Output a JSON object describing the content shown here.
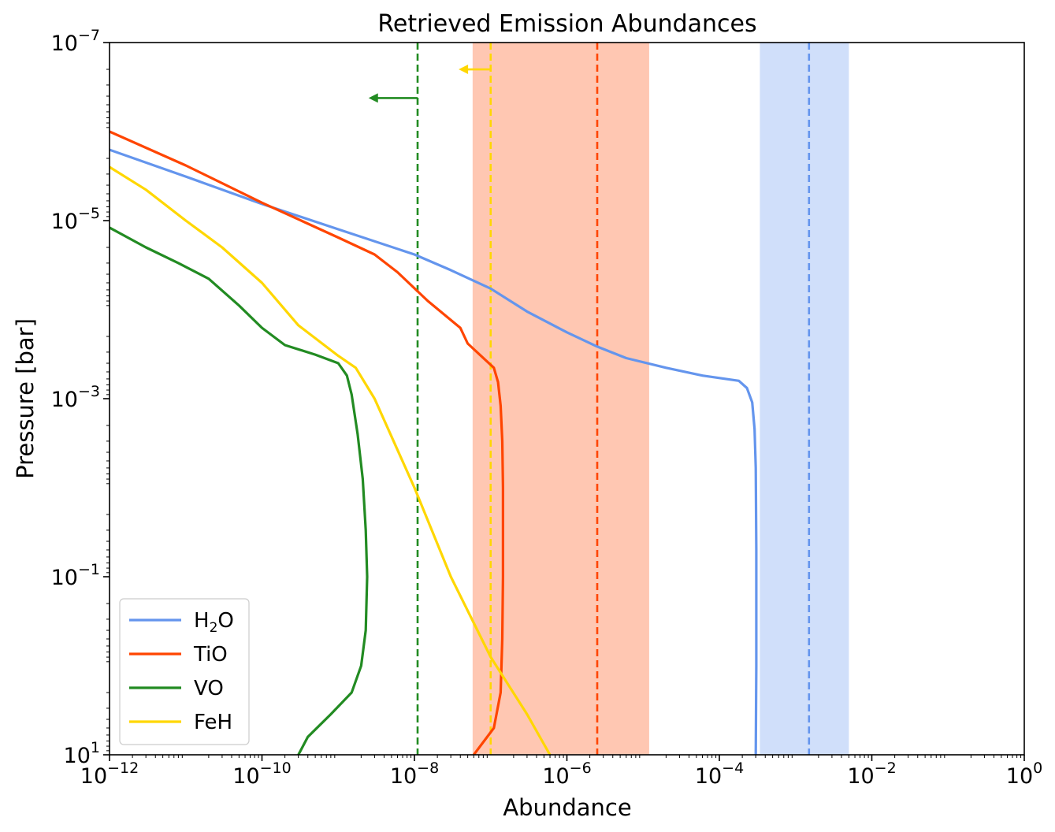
{
  "chart_data": {
    "type": "line",
    "title": "Retrieved Emission Abundances",
    "xlabel": "Abundance",
    "ylabel": "Pressure [bar]",
    "x_scale": "log",
    "y_scale": "log",
    "y_inverted": true,
    "xlim": [
      1e-12,
      1
    ],
    "ylim": [
      10,
      1e-07
    ],
    "x_ticks": [
      {
        "base": "10",
        "exp": "−12",
        "value": 1e-12
      },
      {
        "base": "10",
        "exp": "−10",
        "value": 1e-10
      },
      {
        "base": "10",
        "exp": "−8",
        "value": 1e-08
      },
      {
        "base": "10",
        "exp": "−6",
        "value": 1e-06
      },
      {
        "base": "10",
        "exp": "−4",
        "value": 0.0001
      },
      {
        "base": "10",
        "exp": "−2",
        "value": 0.01
      },
      {
        "base": "10",
        "exp": "0",
        "value": 1
      }
    ],
    "y_ticks": [
      {
        "base": "10",
        "exp": "−7",
        "value": 1e-07
      },
      {
        "base": "10",
        "exp": "−5",
        "value": 1e-05
      },
      {
        "base": "10",
        "exp": "−3",
        "value": 0.001
      },
      {
        "base": "10",
        "exp": "−1",
        "value": 0.1
      },
      {
        "base": "10",
        "exp": "1",
        "value": 10
      }
    ],
    "grid": false,
    "legend_position": "lower-left",
    "series": [
      {
        "name": "H2O",
        "legend_main": "H",
        "legend_sub": "2",
        "legend_tail": "O",
        "color": "#6495ED",
        "points": [
          [
            1e-12,
            1.6e-06
          ],
          [
            1e-11,
            3.2e-06
          ],
          [
            1e-10,
            6.5e-06
          ],
          [
            1e-09,
            1.25e-05
          ],
          [
            1e-08,
            2.4e-05
          ],
          [
            3e-08,
            3.6e-05
          ],
          [
            1e-07,
            5.8e-05
          ],
          [
            3e-07,
            0.000105
          ],
          [
            1e-06,
            0.00018
          ],
          [
            2.5e-06,
            0.00026
          ],
          [
            6e-06,
            0.00035
          ],
          [
            2e-05,
            0.00045
          ],
          [
            6e-05,
            0.00055
          ],
          [
            0.00018,
            0.00063
          ],
          [
            0.00023,
            0.00076
          ],
          [
            0.00027,
            0.0011
          ],
          [
            0.00029,
            0.0022
          ],
          [
            0.0003,
            0.006
          ],
          [
            0.000305,
            0.05
          ],
          [
            0.000305,
            1
          ],
          [
            0.0003,
            10
          ]
        ]
      },
      {
        "name": "TiO",
        "legend_main": "TiO",
        "legend_sub": "",
        "legend_tail": "",
        "color": "#FF4500",
        "points": [
          [
            1e-12,
            1e-06
          ],
          [
            1e-11,
            2.4e-06
          ],
          [
            1e-10,
            6.3e-06
          ],
          [
            1e-09,
            1.55e-05
          ],
          [
            3e-09,
            2.4e-05
          ],
          [
            6e-09,
            3.8e-05
          ],
          [
            1.5e-08,
            8e-05
          ],
          [
            4e-08,
            0.00016
          ],
          [
            5e-08,
            0.00024
          ],
          [
            1.1e-07,
            0.00045
          ],
          [
            1.25e-07,
            0.00065
          ],
          [
            1.35e-07,
            0.0012
          ],
          [
            1.42e-07,
            0.003
          ],
          [
            1.45e-07,
            0.01
          ],
          [
            1.45e-07,
            0.1
          ],
          [
            1.42e-07,
            0.5
          ],
          [
            1.35e-07,
            2
          ],
          [
            1.1e-07,
            5
          ],
          [
            6e-08,
            10
          ]
        ]
      },
      {
        "name": "VO",
        "legend_main": "VO",
        "legend_sub": "",
        "legend_tail": "",
        "color": "#228B22",
        "points": [
          [
            1e-12,
            1.2e-05
          ],
          [
            3e-12,
            2e-05
          ],
          [
            8e-12,
            3e-05
          ],
          [
            2e-11,
            4.5e-05
          ],
          [
            5e-11,
            9e-05
          ],
          [
            1e-10,
            0.00016
          ],
          [
            2e-10,
            0.00025
          ],
          [
            5e-10,
            0.00032
          ],
          [
            1e-09,
            0.0004
          ],
          [
            1.3e-09,
            0.00055
          ],
          [
            1.5e-09,
            0.0009
          ],
          [
            1.8e-09,
            0.0025
          ],
          [
            2.1e-09,
            0.008
          ],
          [
            2.3e-09,
            0.03
          ],
          [
            2.4e-09,
            0.1
          ],
          [
            2.3e-09,
            0.4
          ],
          [
            2e-09,
            1
          ],
          [
            1.5e-09,
            2
          ],
          [
            8e-10,
            3.5
          ],
          [
            4e-10,
            6.3
          ],
          [
            3e-10,
            10
          ]
        ]
      },
      {
        "name": "FeH",
        "legend_main": "FeH",
        "legend_sub": "",
        "legend_tail": "",
        "color": "#FFD700",
        "points": [
          [
            1e-12,
            2.5e-06
          ],
          [
            3e-12,
            4.5e-06
          ],
          [
            1e-11,
            1e-05
          ],
          [
            3e-11,
            2e-05
          ],
          [
            1e-10,
            5e-05
          ],
          [
            3e-10,
            0.00015
          ],
          [
            1e-09,
            0.00033
          ],
          [
            1.7e-09,
            0.00045
          ],
          [
            3e-09,
            0.001
          ],
          [
            1e-08,
            0.01
          ],
          [
            3e-08,
            0.1
          ],
          [
            1e-07,
            0.8
          ],
          [
            3e-07,
            3.5
          ],
          [
            6e-07,
            10
          ]
        ]
      }
    ],
    "vertical_lines": [
      {
        "name": "H2O",
        "x": 0.0015,
        "color": "#6495ED"
      },
      {
        "name": "TiO",
        "x": 2.5e-06,
        "color": "#FF4500"
      },
      {
        "name": "VO",
        "x": 1.1e-08,
        "color": "#228B22"
      },
      {
        "name": "FeH",
        "x": 1e-07,
        "color": "#FFD700"
      }
    ],
    "shaded_bands": [
      {
        "name": "H2O",
        "x_range": [
          0.00034,
          0.005
        ],
        "color": "#6495ED",
        "opacity": 0.3
      },
      {
        "name": "TiO",
        "x_range": [
          5.8e-08,
          1.2e-05
        ],
        "color": "#FF4500",
        "opacity": 0.3
      }
    ],
    "upper_limit_arrows": [
      {
        "name": "VO",
        "x_from": 1.1e-08,
        "x_to": 2.5e-09,
        "y": 4.2e-07,
        "color": "#228B22"
      },
      {
        "name": "FeH",
        "x_from": 1e-07,
        "x_to": 3.8e-08,
        "y": 2e-07,
        "color": "#FFD700"
      }
    ]
  }
}
